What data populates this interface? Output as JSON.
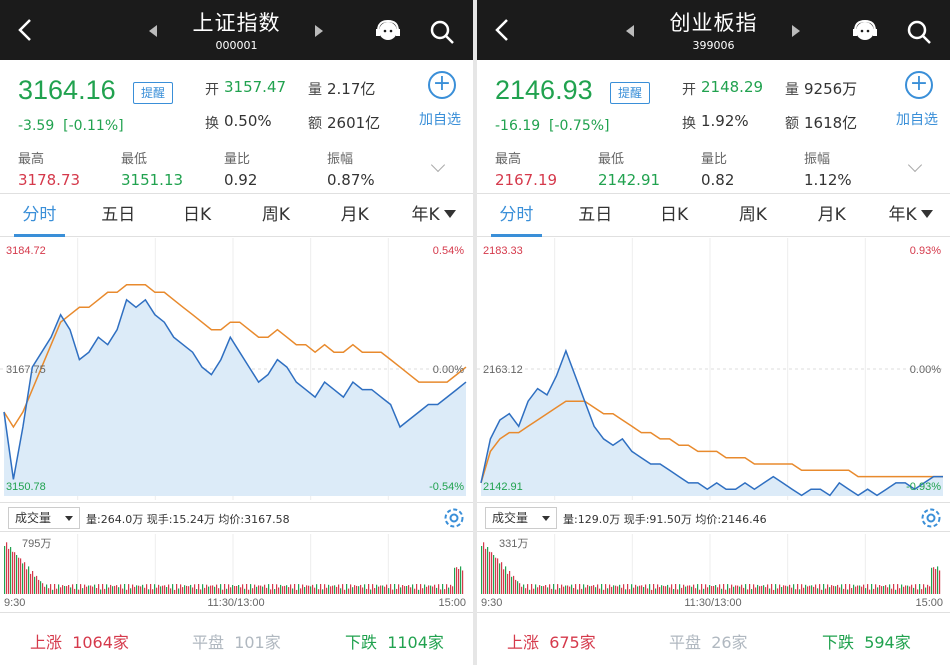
{
  "panels": [
    {
      "title": "上证指数",
      "code": "000001",
      "price": "3164.16",
      "remind": "提醒",
      "change": "-3.59",
      "change_pct": "[-0.11%]",
      "open_label": "开",
      "open": "3157.47",
      "vol_label": "量",
      "vol": "2.17亿",
      "turnover_label": "换",
      "turnover": "0.50%",
      "amount_label": "额",
      "amount": "2601亿",
      "add_label": "加自选",
      "high_label": "最高",
      "high": "3178.73",
      "low_label": "最低",
      "low": "3151.13",
      "ratio_label": "量比",
      "ratio": "0.92",
      "amp_label": "振幅",
      "amp": "0.87%",
      "tabs": [
        "分时",
        "五日",
        "日K",
        "周K",
        "月K",
        "年K"
      ],
      "y_top": "3184.72",
      "y_mid": "3167.75",
      "y_bot": "3150.78",
      "pct_top": "0.54%",
      "pct_mid": "0.00%",
      "pct_bot": "-0.54%",
      "vol_btn": "成交量",
      "vol_info": "量:264.0万  现手:15.24万  均价:3167.58",
      "vol_max": "795万",
      "t_start": "9:30",
      "t_mid": "11:30/13:00",
      "t_end": "15:00",
      "up_label": "上涨",
      "up": "1064家",
      "flat_label": "平盘",
      "flat": "101家",
      "down_label": "下跌",
      "down": "1104家",
      "chart_data": {
        "type": "line",
        "title": "",
        "y_range": [
          3150.78,
          3184.72
        ],
        "prev_close": 3167.75,
        "price": [
          3162,
          3153,
          3160,
          3168,
          3170,
          3172,
          3175,
          3173,
          3169,
          3170,
          3172,
          3171,
          3173,
          3177,
          3176,
          3177,
          3175,
          3174,
          3172,
          3171,
          3170,
          3168,
          3167,
          3169,
          3172,
          3170,
          3168,
          3166,
          3167,
          3169,
          3168,
          3166,
          3165,
          3164,
          3166,
          3165,
          3164,
          3166,
          3165,
          3165,
          3164,
          3163,
          3160,
          3161,
          3162,
          3163,
          3163,
          3164,
          3165,
          3166
        ],
        "avg": [
          3162,
          3160,
          3162,
          3165,
          3168,
          3171,
          3174,
          3175,
          3176,
          3176,
          3177,
          3178,
          3178,
          3179,
          3179,
          3179,
          3178,
          3178,
          3177,
          3176,
          3175,
          3174,
          3173,
          3173,
          3174,
          3174,
          3173,
          3172,
          3172,
          3173,
          3172,
          3171,
          3171,
          3170,
          3171,
          3170,
          3170,
          3171,
          3170,
          3170,
          3170,
          3169,
          3168,
          3167,
          3166,
          3166,
          3166,
          3166,
          3167,
          3168
        ]
      }
    },
    {
      "title": "创业板指",
      "code": "399006",
      "price": "2146.93",
      "remind": "提醒",
      "change": "-16.19",
      "change_pct": "[-0.75%]",
      "open_label": "开",
      "open": "2148.29",
      "vol_label": "量",
      "vol": "9256万",
      "turnover_label": "换",
      "turnover": "1.92%",
      "amount_label": "额",
      "amount": "1618亿",
      "add_label": "加自选",
      "high_label": "最高",
      "high": "2167.19",
      "low_label": "最低",
      "low": "2142.91",
      "ratio_label": "量比",
      "ratio": "0.82",
      "amp_label": "振幅",
      "amp": "1.12%",
      "tabs": [
        "分时",
        "五日",
        "日K",
        "周K",
        "月K",
        "年K"
      ],
      "y_top": "2183.33",
      "y_mid": "2163.12",
      "y_bot": "2142.91",
      "pct_top": "0.93%",
      "pct_mid": "0.00%",
      "pct_bot": "-0.93%",
      "vol_btn": "成交量",
      "vol_info": "量:129.0万  现手:91.50万  均价:2146.46",
      "vol_max": "331万",
      "t_start": "9:30",
      "t_mid": "11:30/13:00",
      "t_end": "15:00",
      "up_label": "上涨",
      "up": "675家",
      "flat_label": "平盘",
      "flat": "26家",
      "down_label": "下跌",
      "down": "594家",
      "chart_data": {
        "type": "line",
        "title": "",
        "y_range": [
          2142.91,
          2183.33
        ],
        "prev_close": 2163.12,
        "price": [
          2145,
          2152,
          2155,
          2156,
          2154,
          2158,
          2160,
          2159,
          2162,
          2166,
          2162,
          2158,
          2154,
          2152,
          2151,
          2152,
          2150,
          2149,
          2148,
          2148,
          2147,
          2146,
          2145,
          2145,
          2144,
          2145,
          2144,
          2144,
          2145,
          2144,
          2145,
          2146,
          2145,
          2144,
          2143,
          2144,
          2144,
          2143,
          2145,
          2144,
          2143,
          2144,
          2143,
          2144,
          2145,
          2145,
          2144,
          2145,
          2146,
          2146
        ],
        "avg": [
          2145,
          2150,
          2152,
          2153,
          2153,
          2154,
          2155,
          2156,
          2157,
          2158,
          2158,
          2158,
          2157,
          2156,
          2156,
          2155,
          2154,
          2153,
          2153,
          2152,
          2152,
          2151,
          2151,
          2150,
          2150,
          2150,
          2149,
          2149,
          2149,
          2148,
          2148,
          2148,
          2148,
          2148,
          2147,
          2147,
          2147,
          2147,
          2147,
          2147,
          2146,
          2146,
          2146,
          2146,
          2146,
          2146,
          2146,
          2146,
          2146,
          2146
        ]
      }
    }
  ]
}
